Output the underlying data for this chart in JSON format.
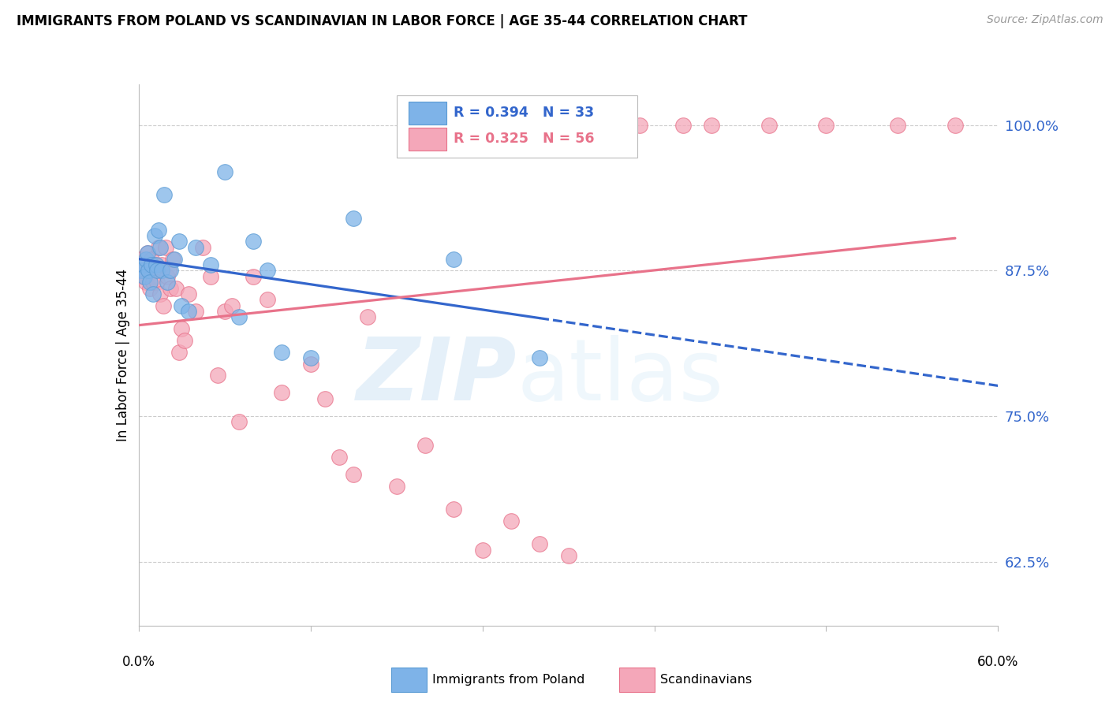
{
  "title": "IMMIGRANTS FROM POLAND VS SCANDINAVIAN IN LABOR FORCE | AGE 35-44 CORRELATION CHART",
  "source": "Source: ZipAtlas.com",
  "ylabel": "In Labor Force | Age 35-44",
  "x_min": 0.0,
  "x_max": 60.0,
  "y_min": 57.0,
  "y_max": 103.5,
  "yticks": [
    62.5,
    75.0,
    87.5,
    100.0
  ],
  "xticks": [
    0.0,
    12.0,
    24.0,
    36.0,
    48.0,
    60.0
  ],
  "poland_color": "#7EB3E8",
  "poland_edge": "#5A9BD4",
  "scandinavian_color": "#F4A7B9",
  "scandinavian_edge": "#E8728A",
  "poland_R": 0.394,
  "poland_N": 33,
  "scandinavian_R": 0.325,
  "scandinavian_N": 56,
  "blue_color": "#3366CC",
  "pink_color": "#E8728A",
  "poland_scatter_x": [
    0.2,
    0.3,
    0.4,
    0.5,
    0.6,
    0.7,
    0.8,
    0.9,
    1.0,
    1.1,
    1.2,
    1.3,
    1.4,
    1.5,
    1.6,
    1.8,
    2.0,
    2.2,
    2.5,
    2.8,
    3.0,
    3.5,
    4.0,
    5.0,
    6.0,
    7.0,
    8.0,
    9.0,
    10.0,
    12.0,
    15.0,
    22.0,
    28.0
  ],
  "poland_scatter_y": [
    87.5,
    88.0,
    87.0,
    88.5,
    89.0,
    87.5,
    86.5,
    88.0,
    85.5,
    90.5,
    88.0,
    87.5,
    91.0,
    89.5,
    87.5,
    94.0,
    86.5,
    87.5,
    88.5,
    90.0,
    84.5,
    84.0,
    89.5,
    88.0,
    96.0,
    83.5,
    90.0,
    87.5,
    80.5,
    80.0,
    92.0,
    88.5,
    80.0
  ],
  "scandinavian_scatter_x": [
    0.2,
    0.3,
    0.4,
    0.5,
    0.6,
    0.7,
    0.8,
    0.9,
    1.0,
    1.1,
    1.2,
    1.3,
    1.4,
    1.5,
    1.6,
    1.7,
    1.9,
    2.0,
    2.1,
    2.2,
    2.4,
    2.6,
    2.8,
    3.0,
    3.2,
    3.5,
    4.0,
    4.5,
    5.0,
    5.5,
    6.0,
    6.5,
    7.0,
    8.0,
    9.0,
    10.0,
    12.0,
    13.0,
    14.0,
    15.0,
    16.0,
    18.0,
    20.0,
    22.0,
    24.0,
    26.0,
    28.0,
    30.0,
    32.0,
    35.0,
    38.0,
    40.0,
    44.0,
    48.0,
    53.0,
    57.0
  ],
  "scandinavian_scatter_y": [
    88.5,
    87.0,
    87.5,
    86.5,
    89.0,
    87.5,
    86.0,
    88.5,
    86.5,
    88.0,
    87.5,
    86.5,
    89.5,
    85.5,
    88.0,
    84.5,
    89.5,
    87.0,
    87.5,
    86.0,
    88.5,
    86.0,
    80.5,
    82.5,
    81.5,
    85.5,
    84.0,
    89.5,
    87.0,
    78.5,
    84.0,
    84.5,
    74.5,
    87.0,
    85.0,
    77.0,
    79.5,
    76.5,
    71.5,
    70.0,
    83.5,
    69.0,
    72.5,
    67.0,
    63.5,
    66.0,
    64.0,
    63.0,
    100.0,
    100.0,
    100.0,
    100.0,
    100.0,
    100.0,
    100.0,
    100.0
  ]
}
